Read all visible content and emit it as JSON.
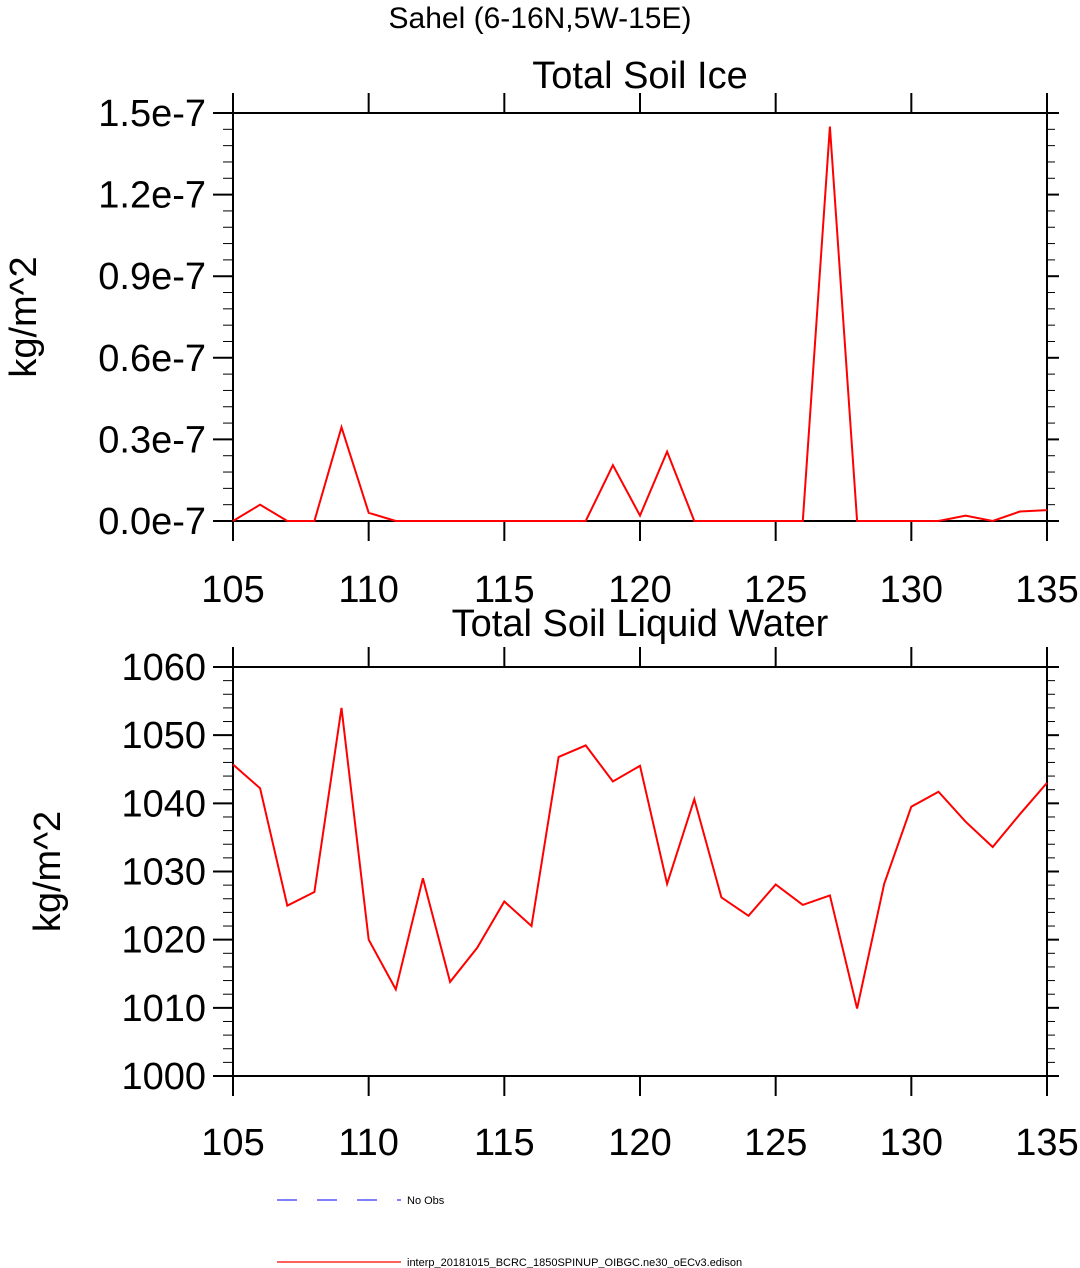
{
  "figure": {
    "title": "Sahel (6-16N,5W-15E)"
  },
  "legend": {
    "items": [
      {
        "label": "No Obs",
        "color": "#3333ff",
        "dash": true
      },
      {
        "label": "interp_20181015_BCRC_1850SPINUP_OIBGC.ne30_oECv3.edison",
        "color": "#ff0000",
        "dash": false
      }
    ]
  },
  "chart_data": [
    {
      "type": "line",
      "title": "Total Soil Ice",
      "xlabel": "",
      "ylabel": "kg/m^2",
      "xlim": [
        105,
        135
      ],
      "ylim": [
        0,
        1.5e-07
      ],
      "xticks": [
        105,
        110,
        115,
        120,
        125,
        130,
        135
      ],
      "yticks": [
        0,
        3e-08,
        6e-08,
        9e-08,
        1.2e-07,
        1.5e-07
      ],
      "ytick_labels": [
        "0.0e-7",
        "0.3e-7",
        "0.6e-7",
        "0.9e-7",
        "1.2e-7",
        "1.5e-7"
      ],
      "series": [
        {
          "color": "#ff0000",
          "x": [
            105,
            106,
            107,
            108,
            109,
            110,
            111,
            112,
            113,
            114,
            115,
            116,
            117,
            118,
            119,
            120,
            121,
            122,
            123,
            124,
            125,
            126,
            127,
            128,
            129,
            130,
            131,
            132,
            133,
            134,
            135
          ],
          "values": [
            0,
            6e-09,
            0,
            0,
            3.45e-08,
            3e-09,
            0,
            0,
            0,
            0,
            0,
            0,
            0,
            0,
            2.05e-08,
            2e-09,
            2.55e-08,
            0,
            0,
            0,
            0,
            0,
            1.45e-07,
            0,
            0,
            0,
            0,
            2e-09,
            0,
            3.5e-09,
            4e-09
          ]
        }
      ]
    },
    {
      "type": "line",
      "title": "Total Soil Liquid Water",
      "xlabel": "",
      "ylabel": "kg/m^2",
      "xlim": [
        105,
        135
      ],
      "ylim": [
        1000,
        1060
      ],
      "xticks": [
        105,
        110,
        115,
        120,
        125,
        130,
        135
      ],
      "yticks": [
        1000,
        1010,
        1020,
        1030,
        1040,
        1050,
        1060
      ],
      "ytick_labels": [
        "1000",
        "1010",
        "1020",
        "1030",
        "1040",
        "1050",
        "1060"
      ],
      "series": [
        {
          "color": "#ff0000",
          "x": [
            105,
            106,
            107,
            108,
            109,
            110,
            111,
            112,
            113,
            114,
            115,
            116,
            117,
            118,
            119,
            120,
            121,
            122,
            123,
            124,
            125,
            126,
            127,
            128,
            129,
            130,
            131,
            132,
            133,
            134,
            135
          ],
          "values": [
            1045.7,
            1042.2,
            1025.0,
            1027.0,
            1054.0,
            1020.0,
            1012.7,
            1029.0,
            1013.8,
            1018.8,
            1025.6,
            1022.0,
            1046.8,
            1048.5,
            1043.2,
            1045.5,
            1028.2,
            1040.6,
            1026.2,
            1023.5,
            1028.1,
            1025.1,
            1026.5,
            1009.9,
            1028.2,
            1039.5,
            1041.7,
            1037.3,
            1033.6,
            1038.4,
            1043.0
          ]
        }
      ]
    }
  ]
}
